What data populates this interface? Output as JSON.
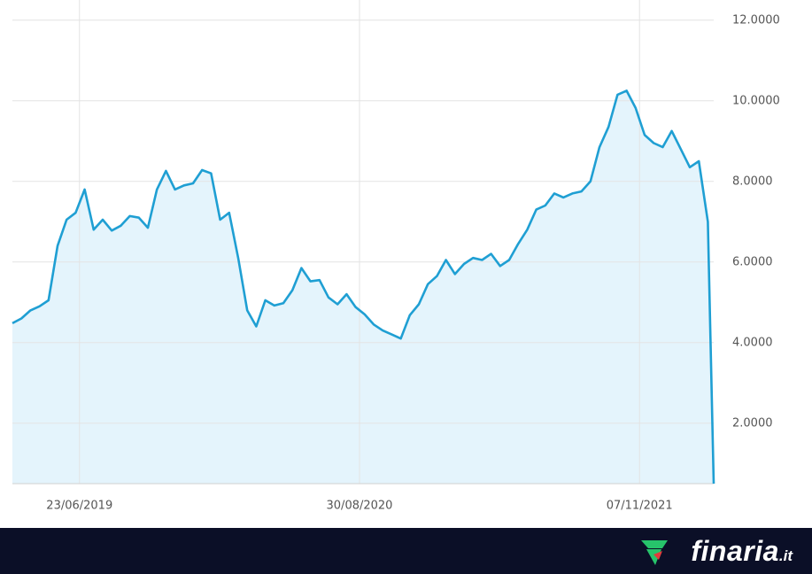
{
  "chart_data": {
    "type": "area",
    "x": [
      "2019-03-11",
      "2019-03-25",
      "2019-04-08",
      "2019-04-22",
      "2019-05-06",
      "2019-05-20",
      "2019-06-03",
      "2019-06-17",
      "2019-07-01",
      "2019-07-15",
      "2019-07-29",
      "2019-08-12",
      "2019-08-26",
      "2019-09-09",
      "2019-09-23",
      "2019-10-07",
      "2019-10-21",
      "2019-11-04",
      "2019-11-18",
      "2019-12-02",
      "2019-12-16",
      "2019-12-30",
      "2020-01-13",
      "2020-01-27",
      "2020-02-10",
      "2020-02-24",
      "2020-03-09",
      "2020-03-23",
      "2020-04-06",
      "2020-04-20",
      "2020-05-04",
      "2020-05-18",
      "2020-06-01",
      "2020-06-15",
      "2020-06-29",
      "2020-07-13",
      "2020-07-27",
      "2020-08-10",
      "2020-08-24",
      "2020-09-07",
      "2020-09-21",
      "2020-10-05",
      "2020-10-19",
      "2020-11-02",
      "2020-11-16",
      "2020-11-30",
      "2020-12-14",
      "2020-12-28",
      "2021-01-11",
      "2021-01-25",
      "2021-02-08",
      "2021-02-22",
      "2021-03-08",
      "2021-03-22",
      "2021-04-05",
      "2021-04-19",
      "2021-05-03",
      "2021-05-17",
      "2021-05-31",
      "2021-06-14",
      "2021-06-28",
      "2021-07-12",
      "2021-07-26",
      "2021-08-09",
      "2021-08-23",
      "2021-09-06",
      "2021-09-20",
      "2021-10-04",
      "2021-10-18",
      "2021-11-01",
      "2021-11-15",
      "2021-11-29",
      "2021-12-13",
      "2021-12-27",
      "2022-01-10",
      "2022-01-24",
      "2022-02-07",
      "2022-02-21",
      "2022-03-02"
    ],
    "values": [
      4.48,
      4.6,
      4.8,
      4.9,
      5.05,
      6.4,
      7.05,
      7.22,
      7.8,
      6.8,
      7.05,
      6.78,
      6.9,
      7.14,
      7.1,
      6.85,
      7.8,
      8.26,
      7.8,
      7.9,
      7.95,
      8.28,
      8.2,
      7.05,
      7.22,
      6.1,
      4.8,
      4.4,
      5.05,
      4.92,
      4.98,
      5.3,
      5.85,
      5.52,
      5.55,
      5.12,
      4.95,
      5.2,
      4.88,
      4.7,
      4.45,
      4.3,
      4.2,
      4.1,
      4.68,
      4.95,
      5.45,
      5.65,
      6.05,
      5.7,
      5.95,
      6.1,
      6.05,
      6.2,
      5.9,
      6.05,
      6.45,
      6.8,
      7.3,
      7.4,
      7.7,
      7.6,
      7.7,
      7.75,
      8.0,
      8.85,
      9.35,
      10.15,
      10.25,
      9.82,
      9.15,
      8.95,
      8.85,
      9.25,
      8.8,
      8.35,
      8.5,
      7.0,
      0.5
    ],
    "color": "#1f9fd3",
    "fill_color": "#e4f4fc",
    "xlim": [
      "2019-03-11",
      "2022-03-02"
    ],
    "xticks": [
      {
        "value": "2019-06-23",
        "label": "23/06/2019"
      },
      {
        "value": "2020-08-30",
        "label": "30/08/2020"
      },
      {
        "value": "2021-11-07",
        "label": "07/11/2021"
      }
    ],
    "ylim": [
      0.5,
      12.5
    ],
    "yticks": [
      {
        "value": 2,
        "label": "2.0000"
      },
      {
        "value": 4,
        "label": "4.0000"
      },
      {
        "value": 6,
        "label": "6.0000"
      },
      {
        "value": 8,
        "label": "8.0000"
      },
      {
        "value": 10,
        "label": "10.0000"
      },
      {
        "value": 12,
        "label": "12.0000"
      }
    ],
    "grid": true
  },
  "footer": {
    "brand": "finaria",
    "suffix": ".it"
  }
}
